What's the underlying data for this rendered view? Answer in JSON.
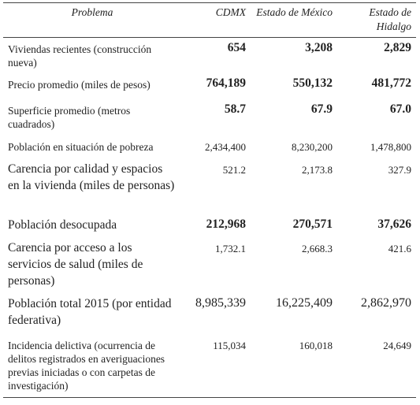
{
  "table": {
    "header": [
      "Problema",
      "CDMX",
      "Estado de México",
      "Estado de Hidalgo"
    ],
    "rows": [
      [
        "Viviendas recientes (construcción nueva)",
        "654",
        "3,208",
        "2,829"
      ],
      [
        "Precio promedio (miles de pesos)",
        "764,189",
        "550,132",
        "481,772"
      ],
      [
        "Superficie promedio (metros cuadrados)",
        "58.7",
        "67.9",
        "67.0"
      ],
      [
        "Población en situación de pobreza",
        "2,434,400",
        "8,230,200",
        "1,478,800"
      ],
      [
        "Carencia por calidad y espacios en la vivienda (miles de personas)",
        "521.2",
        "2,173.8",
        "327.9"
      ],
      [
        "Población desocupada",
        "212,968",
        "270,571",
        "37,626"
      ],
      [
        "Carencia por acceso a los servicios de salud (miles de personas)",
        "1,732.1",
        "2,668.3",
        "421.6"
      ],
      [
        "Población total 2015 (por entidad federativa)",
        "8,985,339",
        "16,225,409",
        "2,862,970"
      ],
      [
        "Incidencia delictiva (ocurrencia de delitos registrados en averiguaciones previas iniciadas o con carpetas de investigación)",
        "115,034",
        "160,018",
        "24,649"
      ]
    ]
  }
}
